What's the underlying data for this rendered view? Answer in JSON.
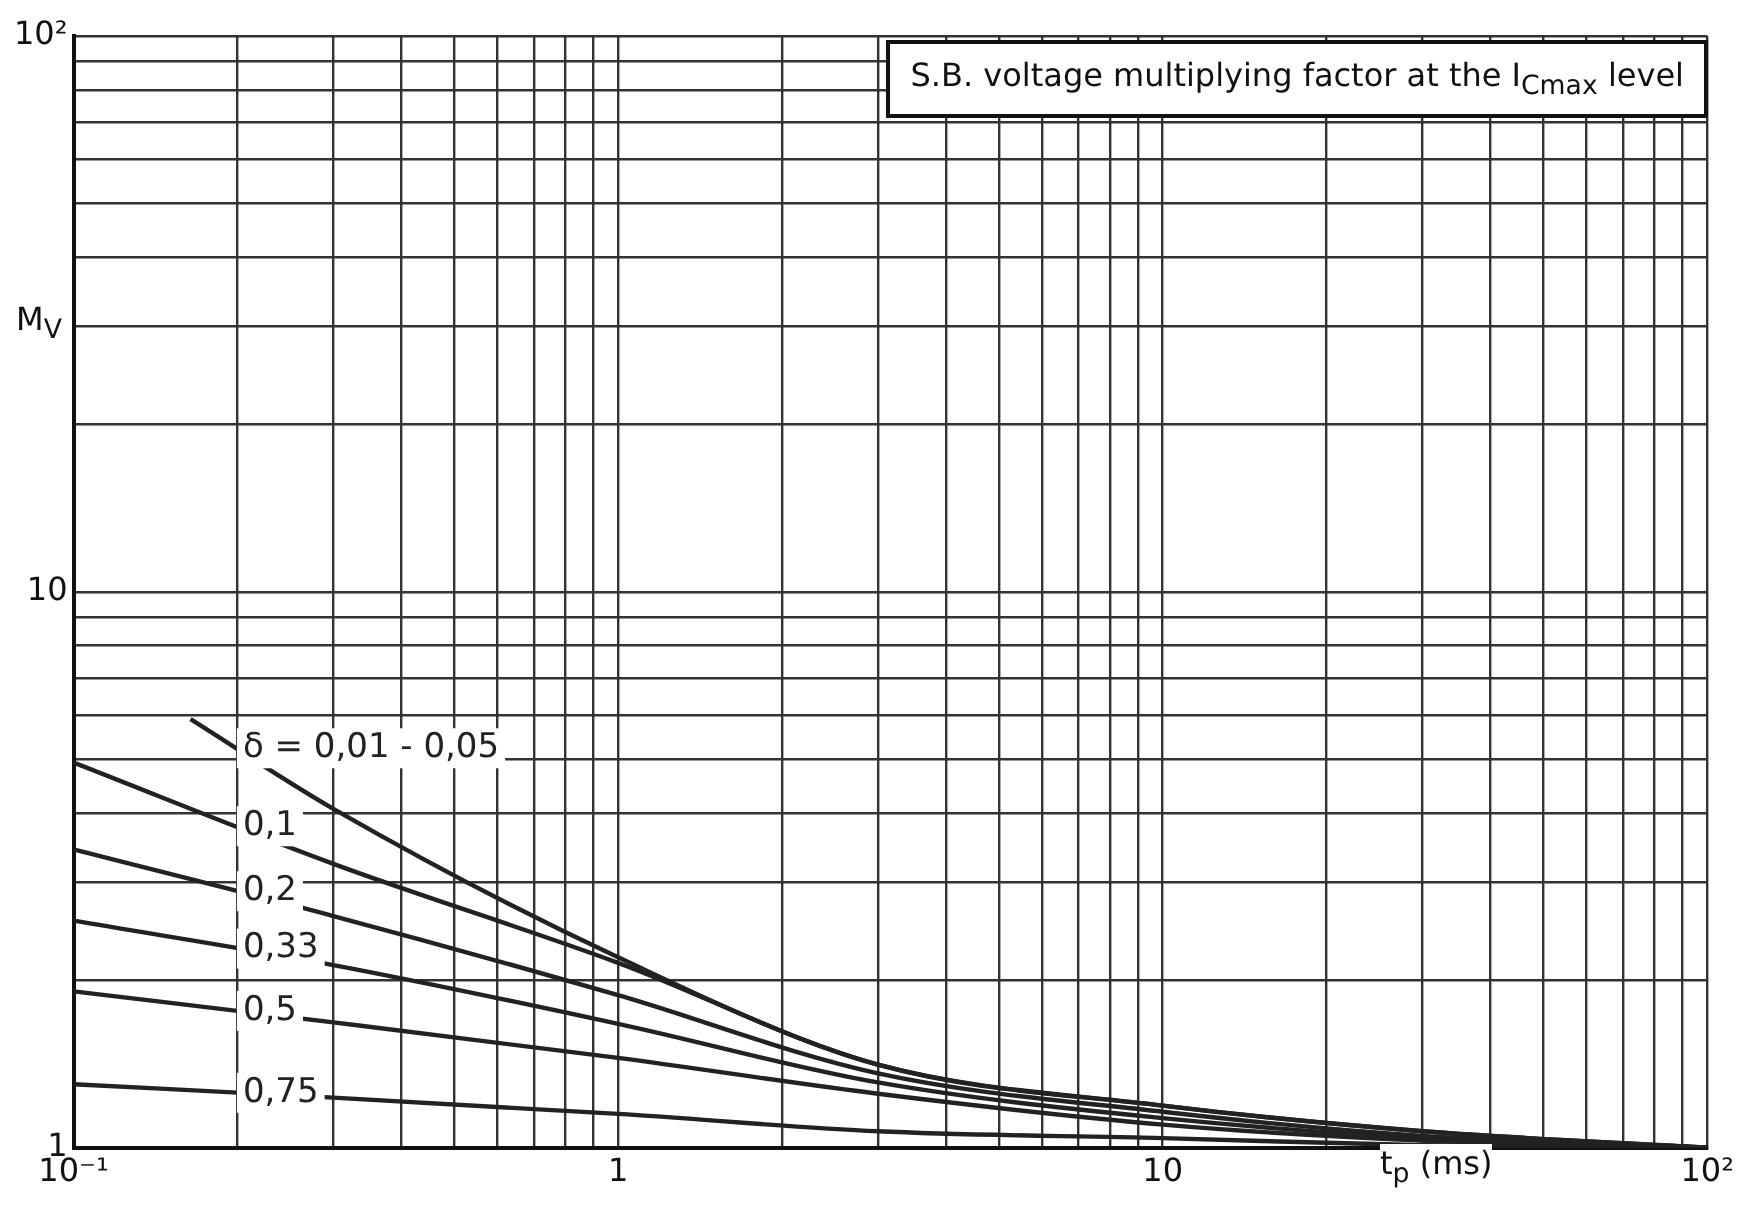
{
  "chart_data": {
    "type": "line",
    "title": "S.B. voltage multiplying factor at the I$_{Cmax}$ level",
    "xlabel": "t$_{p}$ (ms)",
    "ylabel": "M$_{V}$",
    "log": "xy",
    "grid": true,
    "legend": false,
    "marker": "none",
    "line_style": "solid",
    "xlim": [
      0.1,
      100
    ],
    "ylim": [
      1,
      100
    ],
    "xticks": [
      {
        "value": 0.1,
        "label": "10⁻¹"
      },
      {
        "value": 0.2,
        "label": null
      },
      {
        "value": 0.3,
        "label": null
      },
      {
        "value": 0.4,
        "label": null
      },
      {
        "value": 0.5,
        "label": null
      },
      {
        "value": 0.6,
        "label": null
      },
      {
        "value": 0.7,
        "label": null
      },
      {
        "value": 0.8,
        "label": null
      },
      {
        "value": 0.9,
        "label": null
      },
      1,
      {
        "value": 2,
        "label": null
      },
      {
        "value": 3,
        "label": null
      },
      {
        "value": 4,
        "label": null
      },
      {
        "value": 5,
        "label": null
      },
      {
        "value": 6,
        "label": null
      },
      {
        "value": 7,
        "label": null
      },
      {
        "value": 8,
        "label": null
      },
      {
        "value": 9,
        "label": null
      },
      10,
      {
        "value": 20,
        "label": null
      },
      {
        "value": 30,
        "label": null
      },
      {
        "value": 40,
        "label": null
      },
      {
        "value": 50,
        "label": null
      },
      {
        "value": 60,
        "label": null
      },
      {
        "value": 70,
        "label": null
      },
      {
        "value": 80,
        "label": null
      },
      {
        "value": 90,
        "label": null
      },
      {
        "value": 100,
        "label": "10²"
      }
    ],
    "yticks": [
      1,
      {
        "value": 2,
        "label": null
      },
      {
        "value": 3,
        "label": null
      },
      {
        "value": 4,
        "label": null
      },
      {
        "value": 5,
        "label": null
      },
      {
        "value": 6,
        "label": null
      },
      {
        "value": 7,
        "label": null
      },
      {
        "value": 8,
        "label": null
      },
      {
        "value": 9,
        "label": null
      },
      10,
      {
        "value": 20,
        "label": null
      },
      {
        "value": 30,
        "label": null
      },
      {
        "value": 40,
        "label": null
      },
      {
        "value": 50,
        "label": null
      },
      {
        "value": 60,
        "label": null
      },
      {
        "value": 70,
        "label": null
      },
      {
        "value": 80,
        "label": null
      },
      {
        "value": 90,
        "label": null
      },
      {
        "value": 100,
        "label": "10²"
      }
    ],
    "series": [
      {
        "name": "δ = 0,01 - 0,05",
        "color": "#222222",
        "x": [
          0.164,
          0.3,
          1,
          3,
          10,
          30,
          100
        ],
        "values": [
          5.9,
          4.07,
          2.2,
          1.41,
          1.19,
          1.07,
          1
        ]
      },
      {
        "name": "0,1",
        "color": "#222222",
        "x": [
          0.1,
          0.3,
          1,
          3,
          10,
          30,
          100
        ],
        "values": [
          4.93,
          3.24,
          2.15,
          1.41,
          1.19,
          1.07,
          1
        ]
      },
      {
        "name": "0,2",
        "color": "#222222",
        "x": [
          0.1,
          0.3,
          1,
          3,
          10,
          30,
          100
        ],
        "values": [
          3.44,
          2.61,
          1.88,
          1.36,
          1.16,
          1.05,
          1
        ]
      },
      {
        "name": "0,33",
        "color": "#222222",
        "x": [
          0.1,
          0.3,
          1,
          3,
          10,
          30,
          100
        ],
        "values": [
          2.56,
          2.13,
          1.67,
          1.31,
          1.13,
          1.04,
          1
        ]
      },
      {
        "name": "0,5",
        "color": "#222222",
        "x": [
          0.1,
          0.3,
          1,
          3,
          10,
          30,
          100
        ],
        "values": [
          1.91,
          1.68,
          1.45,
          1.25,
          1.1,
          1.03,
          1
        ]
      },
      {
        "name": "0,75",
        "color": "#222222",
        "x": [
          0.1,
          0.3,
          1,
          3,
          10,
          30,
          100
        ],
        "values": [
          1.3,
          1.23,
          1.15,
          1.07,
          1.04,
          1.01,
          1
        ]
      }
    ]
  }
}
